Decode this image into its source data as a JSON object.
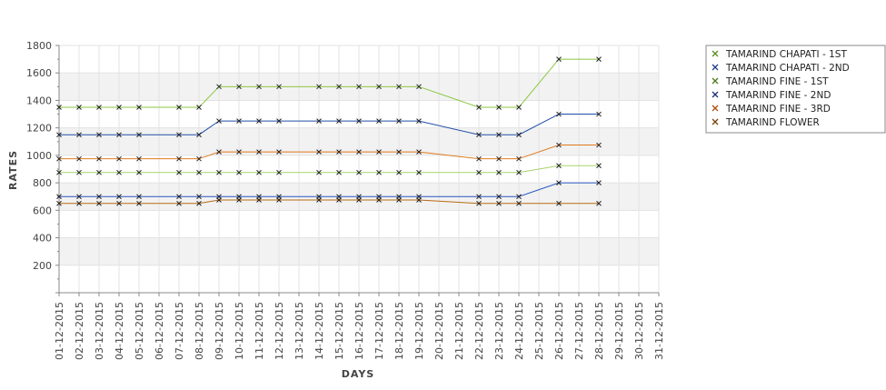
{
  "chart_data": {
    "type": "line",
    "xlabel": "DAYS",
    "ylabel": "RATES",
    "ylim": [
      0,
      1800
    ],
    "yticks": [
      200,
      400,
      600,
      800,
      1000,
      1200,
      1400,
      1600,
      1800
    ],
    "grid": true,
    "legend_position": "top-right",
    "categories": [
      "01-12-2015",
      "02-12-2015",
      "03-12-2015",
      "04-12-2015",
      "05-12-2015",
      "06-12-2015",
      "07-12-2015",
      "08-12-2015",
      "09-12-2015",
      "10-12-2015",
      "11-12-2015",
      "12-12-2015",
      "13-12-2015",
      "14-12-2015",
      "15-12-2015",
      "16-12-2015",
      "17-12-2015",
      "18-12-2015",
      "19-12-2015",
      "20-12-2015",
      "21-12-2015",
      "22-12-2015",
      "23-12-2015",
      "24-12-2015",
      "25-12-2015",
      "26-12-2015",
      "27-12-2015",
      "28-12-2015",
      "29-12-2015",
      "30-12-2015",
      "31-12-2015"
    ],
    "series": [
      {
        "name": "TAMARIND CHAPATI - 1ST",
        "color": "#8dc63f",
        "marker_color": "#5a8f1a",
        "values": [
          1350,
          1350,
          1350,
          1350,
          1350,
          null,
          1350,
          1350,
          1500,
          1500,
          1500,
          1500,
          null,
          1500,
          1500,
          1500,
          1500,
          1500,
          1500,
          null,
          null,
          1350,
          1350,
          1350,
          null,
          1700,
          null,
          1700,
          null,
          null,
          null
        ]
      },
      {
        "name": "TAMARIND CHAPATI - 2ND",
        "color": "#1f4ea8",
        "marker_color": "#1f3f8a",
        "values": [
          1150,
          1150,
          1150,
          1150,
          1150,
          null,
          1150,
          1150,
          1250,
          1250,
          1250,
          1250,
          null,
          1250,
          1250,
          1250,
          1250,
          1250,
          1250,
          null,
          null,
          1150,
          1150,
          1150,
          null,
          1300,
          null,
          1300,
          null,
          null,
          null
        ]
      },
      {
        "name": "TAMARIND FINE - 1ST",
        "color": "#a6d36a",
        "marker_color": "#4d7a1a",
        "values": [
          875,
          875,
          875,
          875,
          875,
          null,
          875,
          875,
          875,
          875,
          875,
          875,
          null,
          875,
          875,
          875,
          875,
          875,
          875,
          null,
          null,
          875,
          875,
          875,
          null,
          925,
          null,
          925,
          null,
          null,
          null
        ]
      },
      {
        "name": "TAMARIND FINE - 2ND",
        "color": "#2a55c0",
        "marker_color": "#1a2f7a",
        "values": [
          700,
          700,
          700,
          700,
          700,
          null,
          700,
          700,
          700,
          700,
          700,
          700,
          null,
          700,
          700,
          700,
          700,
          700,
          700,
          null,
          null,
          700,
          700,
          700,
          null,
          800,
          null,
          800,
          null,
          null,
          null
        ]
      },
      {
        "name": "TAMARIND FINE - 3RD",
        "color": "#e07a1e",
        "marker_color": "#a84e0a",
        "values": [
          975,
          975,
          975,
          975,
          975,
          null,
          975,
          975,
          1025,
          1025,
          1025,
          1025,
          null,
          1025,
          1025,
          1025,
          1025,
          1025,
          1025,
          null,
          null,
          975,
          975,
          975,
          null,
          1075,
          null,
          1075,
          null,
          null,
          null
        ]
      },
      {
        "name": "TAMARIND FLOWER",
        "color": "#b86a14",
        "marker_color": "#7a4008",
        "values": [
          650,
          650,
          650,
          650,
          650,
          null,
          650,
          650,
          675,
          675,
          675,
          675,
          null,
          675,
          675,
          675,
          675,
          675,
          675,
          null,
          null,
          650,
          650,
          650,
          null,
          650,
          null,
          650,
          null,
          null,
          null
        ]
      }
    ]
  }
}
